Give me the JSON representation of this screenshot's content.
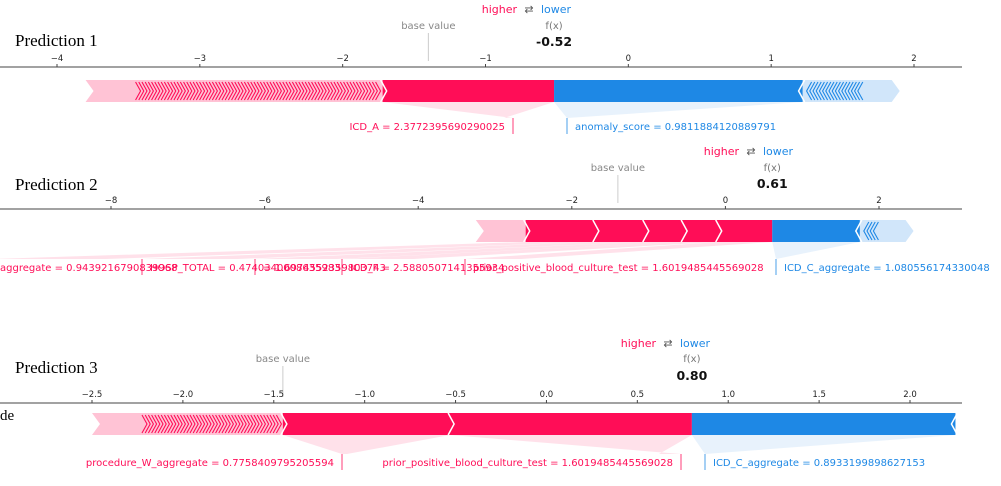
{
  "colors": {
    "positive": "#ff0d57",
    "negative": "#1e88e5",
    "positive_light": "#ffc3d5",
    "negative_light": "#d1e6fa"
  },
  "left_stub_text": "de",
  "chart_data": [
    {
      "type": "force",
      "title": "Prediction 1",
      "legend": {
        "higher": "higher",
        "arrows": "⇄",
        "lower": "lower"
      },
      "base_value_label": "base value",
      "base_value": -1.4,
      "fx_label": "f(x)",
      "fx_value_label": "-0.52",
      "fx": -0.52,
      "xlim": [
        -4,
        2
      ],
      "ticks": [
        -4,
        -3,
        -2,
        -1,
        0,
        1,
        2
      ],
      "tick_labels": [
        "−4",
        "−3",
        "−2",
        "−1",
        "0",
        "1",
        "2"
      ],
      "bar_extent": [
        -3.8,
        1.9
      ],
      "features": [
        {
          "label": "ICD_A = 2.3772395690290025",
          "effect": "positive",
          "start": -1.72,
          "end": -0.52
        },
        {
          "label": "anomaly_score = 0.9811884120889791",
          "effect": "negative",
          "start": -0.52,
          "end": 1.22
        }
      ]
    },
    {
      "type": "force",
      "title": "Prediction 2",
      "legend": {
        "higher": "higher",
        "arrows": "⇄",
        "lower": "lower"
      },
      "base_value_label": "base value",
      "base_value": -1.4,
      "fx_label": "f(x)",
      "fx_value_label": "0.61",
      "fx": 0.61,
      "xlim": [
        -9.6,
        3.2
      ],
      "ticks": [
        -8,
        -6,
        -4,
        -2,
        0,
        2
      ],
      "tick_labels": [
        "−8",
        "−6",
        "−4",
        "−2",
        "0",
        "2"
      ],
      "bar_extent": [
        -3.25,
        2.45
      ],
      "features": [
        {
          "label": "aggregate = 0.9439216790839968",
          "effect": "positive",
          "start": -2.6,
          "end": -1.7
        },
        {
          "label": "HOSP_TOTAL = 0.4740340008635983",
          "effect": "positive",
          "start": -1.7,
          "end": -1.05
        },
        {
          "label": "= 1.6974552359803743",
          "effect": "positive",
          "start": -1.05,
          "end": -0.55
        },
        {
          "label": "ICD_F = 2.5880507141355934",
          "effect": "positive",
          "start": -0.55,
          "end": -0.1
        },
        {
          "label": "prior_positive_blood_culture_test = 1.6019485445569028",
          "effect": "positive",
          "start": -0.1,
          "end": 0.61
        },
        {
          "label": "ICD_C_aggregate = 1.080556174330048",
          "effect": "negative",
          "start": 0.61,
          "end": 1.75
        }
      ]
    },
    {
      "type": "force",
      "title": "Prediction 3",
      "legend": {
        "higher": "higher",
        "arrows": "⇄",
        "lower": "lower"
      },
      "base_value_label": "base value",
      "base_value": -1.45,
      "fx_label": "f(x)",
      "fx_value_label": "0.80",
      "fx": 0.8,
      "xlim": [
        -2.72,
        2.3
      ],
      "ticks": [
        -2.5,
        -2.0,
        -1.5,
        -1.0,
        -0.5,
        0.0,
        0.5,
        1.0,
        1.5,
        2.0
      ],
      "tick_labels": [
        "−2.5",
        "−2.0",
        "−1.5",
        "−1.0",
        "−0.5",
        "0.0",
        "0.5",
        "1.0",
        "1.5",
        "2.0"
      ],
      "bar_extent": [
        -2.5,
        1.88
      ],
      "features": [
        {
          "label": "procedure_W_aggregate = 0.7758409795205594",
          "effect": "positive",
          "start": -1.45,
          "end": -0.53
        },
        {
          "label": "prior_positive_blood_culture_test = 1.6019485445569028",
          "effect": "positive",
          "start": -0.53,
          "end": 0.8
        },
        {
          "label": "ICD_C_aggregate = 0.8933199898627153",
          "effect": "negative",
          "start": 0.8,
          "end": 2.25
        }
      ]
    }
  ]
}
